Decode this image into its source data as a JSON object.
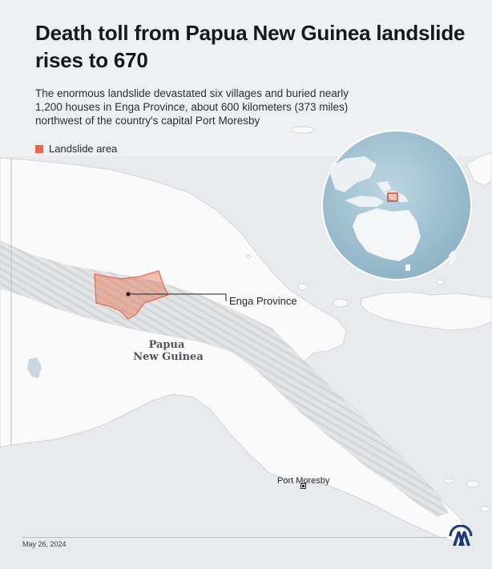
{
  "header": {
    "title": "Death toll from Papua New Guinea landslide rises to 670",
    "subtitle": "The enormous landslide devastated six villages and buried nearly 1,200 houses in Enga Province, about 600 kilometers (373 miles) northwest of the country's capital Port Moresby"
  },
  "legend": {
    "label": "Landslide area",
    "color": "#e76a48"
  },
  "map": {
    "country_label_line1": "Papua",
    "country_label_line2": "New Guinea",
    "province_label": "Enga Province",
    "capital_label": "Port Moresby",
    "sea_color": "#e9ebee",
    "land_color": "#fafafa",
    "highland_color": "#d6d8da",
    "globe_ocean_color": "#a9c7d6"
  },
  "footer": {
    "date": "May 26, 2024",
    "logo_icon": "aa-logo-icon"
  }
}
